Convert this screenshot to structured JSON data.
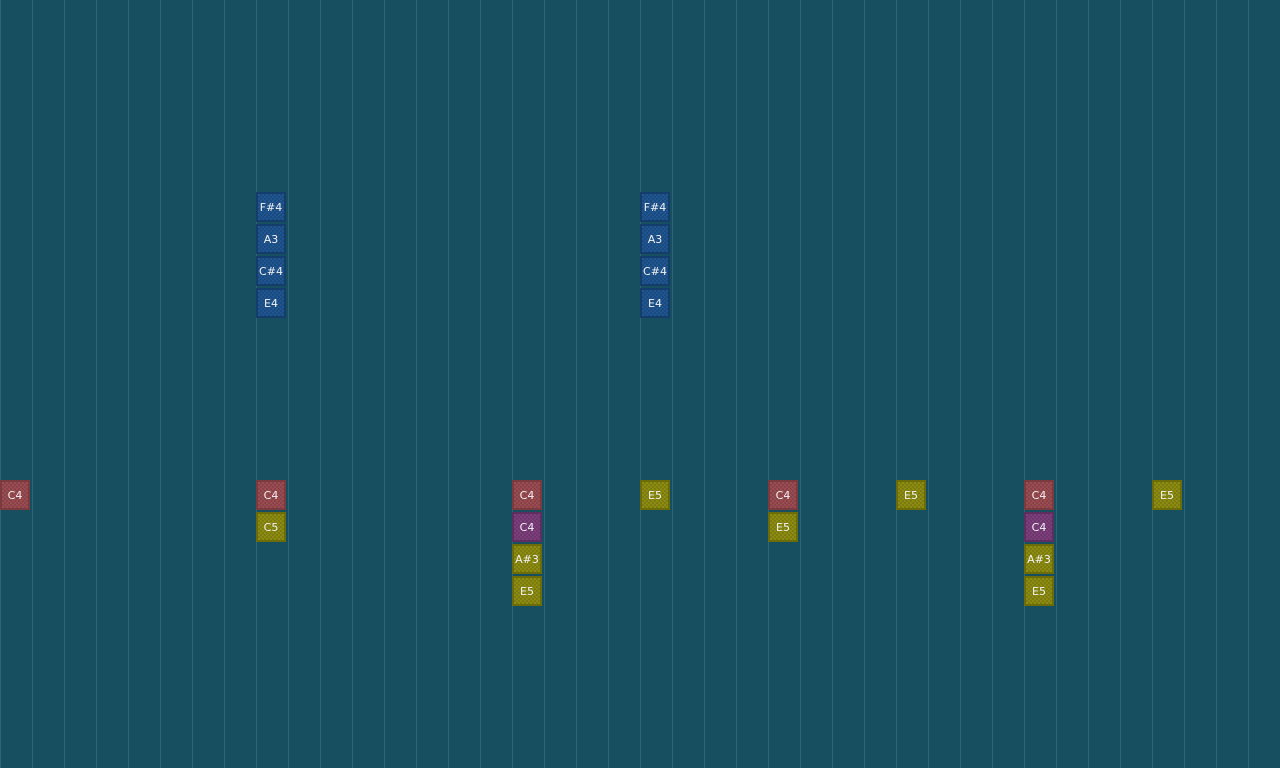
{
  "colors": {
    "background": "#184f60",
    "gridline": "#2f6676",
    "blue": {
      "fill": "#1f5590",
      "border": "#133e6c"
    },
    "red": {
      "fill": "#9a4c52",
      "border": "#7a3a3e"
    },
    "purple": {
      "fill": "#7c3f7c",
      "border": "#5e2f5e"
    },
    "yellow": {
      "fill": "#8c8c12",
      "border": "#6c6c0a"
    }
  },
  "notes": [
    {
      "step": 0,
      "lane": 15,
      "label": "C4",
      "color": "red"
    },
    {
      "step": 8,
      "lane": 6,
      "label": "F#4",
      "color": "blue"
    },
    {
      "step": 8,
      "lane": 7,
      "label": "A3",
      "color": "blue"
    },
    {
      "step": 8,
      "lane": 8,
      "label": "C#4",
      "color": "blue"
    },
    {
      "step": 8,
      "lane": 9,
      "label": "E4",
      "color": "blue"
    },
    {
      "step": 8,
      "lane": 15,
      "label": "C4",
      "color": "red"
    },
    {
      "step": 8,
      "lane": 16,
      "label": "C5",
      "color": "yellow"
    },
    {
      "step": 16,
      "lane": 15,
      "label": "C4",
      "color": "red"
    },
    {
      "step": 16,
      "lane": 16,
      "label": "C4",
      "color": "purple"
    },
    {
      "step": 16,
      "lane": 17,
      "label": "A#3",
      "color": "yellow"
    },
    {
      "step": 16,
      "lane": 18,
      "label": "E5",
      "color": "yellow"
    },
    {
      "step": 20,
      "lane": 6,
      "label": "F#4",
      "color": "blue"
    },
    {
      "step": 20,
      "lane": 7,
      "label": "A3",
      "color": "blue"
    },
    {
      "step": 20,
      "lane": 8,
      "label": "C#4",
      "color": "blue"
    },
    {
      "step": 20,
      "lane": 9,
      "label": "E4",
      "color": "blue"
    },
    {
      "step": 20,
      "lane": 15,
      "label": "E5",
      "color": "yellow"
    },
    {
      "step": 24,
      "lane": 15,
      "label": "C4",
      "color": "red"
    },
    {
      "step": 24,
      "lane": 16,
      "label": "E5",
      "color": "yellow"
    },
    {
      "step": 28,
      "lane": 15,
      "label": "E5",
      "color": "yellow"
    },
    {
      "step": 32,
      "lane": 15,
      "label": "C4",
      "color": "red"
    },
    {
      "step": 32,
      "lane": 16,
      "label": "C4",
      "color": "purple"
    },
    {
      "step": 32,
      "lane": 17,
      "label": "A#3",
      "color": "yellow"
    },
    {
      "step": 32,
      "lane": 18,
      "label": "E5",
      "color": "yellow"
    },
    {
      "step": 36,
      "lane": 15,
      "label": "E5",
      "color": "yellow"
    }
  ]
}
